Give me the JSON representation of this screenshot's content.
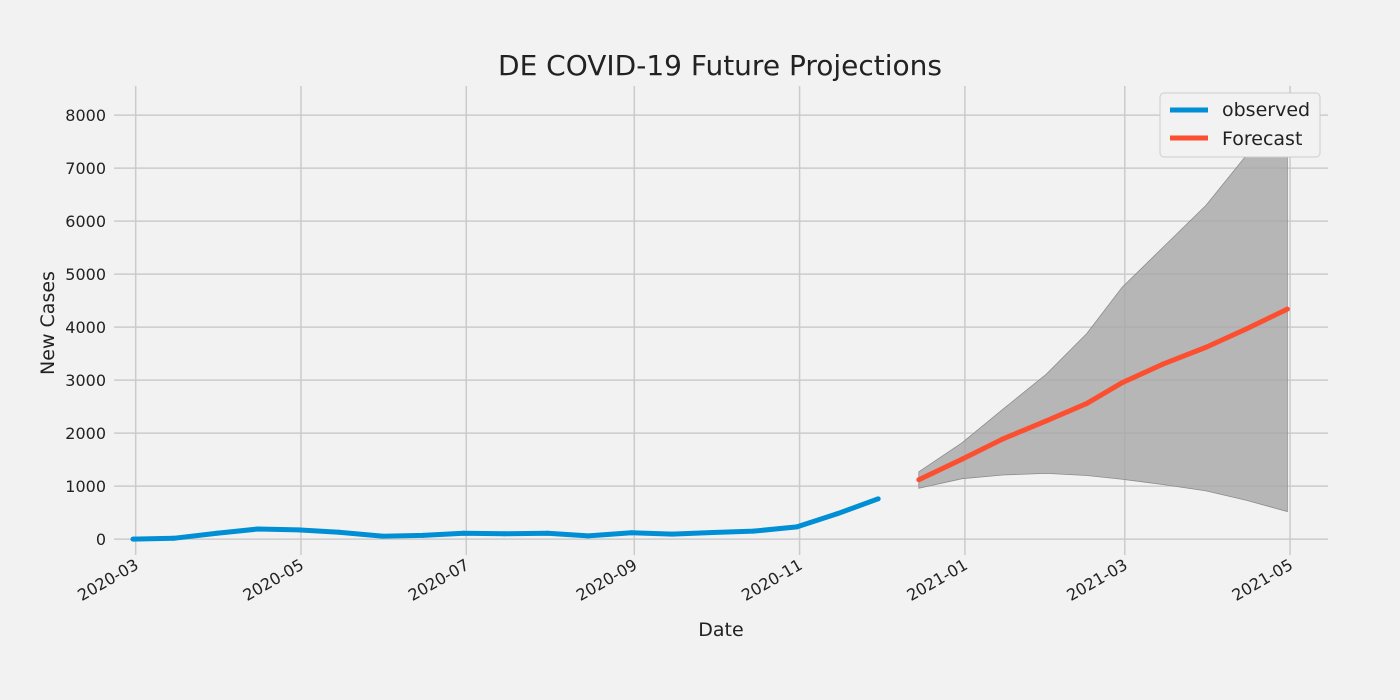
{
  "chart_data": {
    "type": "line",
    "title": "DE COVID-19 Future Projections",
    "xlabel": "Date",
    "ylabel": "New Cases",
    "ylim": [
      -300,
      8550
    ],
    "xlim": [
      "2020-02-22",
      "2021-05-15"
    ],
    "yticks": [
      0,
      1000,
      2000,
      3000,
      4000,
      5000,
      6000,
      7000,
      8000
    ],
    "xticks": [
      "2020-03-01",
      "2020-05-01",
      "2020-07-01",
      "2020-09-01",
      "2020-11-01",
      "2021-01-01",
      "2021-03-01",
      "2021-05-01"
    ],
    "xtick_labels": [
      "2020-03",
      "2020-05",
      "2020-07",
      "2020-09",
      "2020-11",
      "2021-01",
      "2021-03",
      "2021-05"
    ],
    "grid": true,
    "legend_position": "top-right",
    "colors": {
      "observed": "#008fd5",
      "forecast": "#fc4f30",
      "band": "#a6a6a6",
      "background": "#f2f2f2"
    },
    "series": [
      {
        "name": "observed",
        "x": [
          "2020-02-29",
          "2020-03-15",
          "2020-03-31",
          "2020-04-15",
          "2020-04-30",
          "2020-05-15",
          "2020-05-31",
          "2020-06-15",
          "2020-06-30",
          "2020-07-15",
          "2020-07-31",
          "2020-08-15",
          "2020-08-31",
          "2020-09-15",
          "2020-09-30",
          "2020-10-15",
          "2020-10-31",
          "2020-11-15",
          "2020-11-30"
        ],
        "values": [
          0,
          15,
          110,
          190,
          175,
          130,
          55,
          70,
          110,
          100,
          110,
          60,
          120,
          95,
          125,
          150,
          230,
          480,
          760
        ]
      },
      {
        "name": "Forecast",
        "x": [
          "2020-12-15",
          "2020-12-31",
          "2021-01-15",
          "2021-01-31",
          "2021-02-15",
          "2021-02-28",
          "2021-03-15",
          "2021-03-31",
          "2021-04-15",
          "2021-04-30"
        ],
        "values": [
          1120,
          1510,
          1890,
          2230,
          2560,
          2950,
          3300,
          3620,
          3970,
          4340
        ],
        "lower": [
          960,
          1140,
          1210,
          1240,
          1200,
          1130,
          1030,
          910,
          730,
          520
        ],
        "upper": [
          1270,
          1820,
          2450,
          3110,
          3880,
          4750,
          5500,
          6300,
          7250,
          7950
        ]
      }
    ]
  }
}
